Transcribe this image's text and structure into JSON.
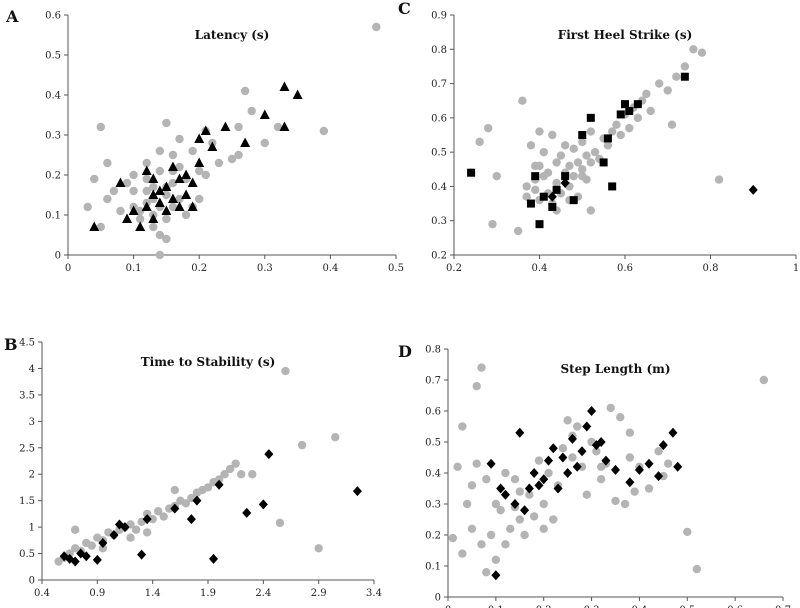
{
  "chart_data": [
    {
      "panel": "A",
      "type": "scatter",
      "title": "Latency (s)",
      "xlim": [
        0,
        0.5
      ],
      "ylim": [
        0,
        0.6
      ],
      "xticks": [
        "0",
        "0.1",
        "0.2",
        "0.3",
        "0.4",
        "0.5"
      ],
      "yticks": [
        "0",
        "0.1",
        "0.2",
        "0.3",
        "0.4",
        "0.5",
        "0.6"
      ],
      "grid": false,
      "series": [
        {
          "marker": "circle",
          "color": "#b4b4b4",
          "x": [
            0.03,
            0.04,
            0.05,
            0.05,
            0.06,
            0.06,
            0.07,
            0.08,
            0.09,
            0.1,
            0.1,
            0.11,
            0.11,
            0.12,
            0.12,
            0.12,
            0.13,
            0.13,
            0.13,
            0.14,
            0.14,
            0.14,
            0.14,
            0.15,
            0.15,
            0.15,
            0.15,
            0.16,
            0.16,
            0.16,
            0.16,
            0.17,
            0.17,
            0.18,
            0.18,
            0.19,
            0.19,
            0.2,
            0.2,
            0.21,
            0.21,
            0.22,
            0.23,
            0.25,
            0.26,
            0.26,
            0.27,
            0.28,
            0.3,
            0.32,
            0.39,
            0.47,
            0.14,
            0.15,
            0.1,
            0.12,
            0.17,
            0.13
          ],
          "y": [
            0.12,
            0.19,
            0.32,
            0.07,
            0.23,
            0.14,
            0.16,
            0.11,
            0.18,
            0.12,
            0.2,
            0.11,
            0.09,
            0.16,
            0.19,
            0.23,
            0.07,
            0.17,
            0.1,
            0.05,
            0.12,
            0.21,
            0.26,
            0.33,
            0.15,
            0.09,
            0.04,
            0.12,
            0.18,
            0.21,
            0.25,
            0.29,
            0.14,
            0.1,
            0.19,
            0.12,
            0.26,
            0.14,
            0.21,
            0.2,
            0.31,
            0.28,
            0.23,
            0.24,
            0.25,
            0.32,
            0.41,
            0.36,
            0.28,
            0.32,
            0.31,
            0.57,
            0.0,
            0.17,
            0.16,
            0.13,
            0.22,
            0.14
          ]
        },
        {
          "marker": "triangle",
          "color": "#000000",
          "x": [
            0.04,
            0.08,
            0.09,
            0.1,
            0.11,
            0.12,
            0.12,
            0.13,
            0.13,
            0.13,
            0.14,
            0.14,
            0.15,
            0.15,
            0.16,
            0.16,
            0.17,
            0.17,
            0.18,
            0.18,
            0.19,
            0.19,
            0.2,
            0.2,
            0.21,
            0.22,
            0.24,
            0.27,
            0.3,
            0.33,
            0.33,
            0.35
          ],
          "y": [
            0.07,
            0.18,
            0.09,
            0.11,
            0.07,
            0.12,
            0.21,
            0.15,
            0.09,
            0.19,
            0.16,
            0.13,
            0.11,
            0.17,
            0.14,
            0.22,
            0.19,
            0.12,
            0.15,
            0.2,
            0.18,
            0.12,
            0.23,
            0.29,
            0.31,
            0.27,
            0.32,
            0.28,
            0.35,
            0.42,
            0.32,
            0.4
          ]
        }
      ]
    },
    {
      "panel": "C",
      "type": "scatter",
      "title": "First Heel Strike (s)",
      "xlim": [
        0.2,
        1.0
      ],
      "ylim": [
        0.2,
        0.9
      ],
      "xticks": [
        "0.2",
        "0.4",
        "0.6",
        "0.8",
        "1"
      ],
      "yticks": [
        "0.2",
        "0.3",
        "0.4",
        "0.5",
        "0.6",
        "0.7",
        "0.8",
        "0.9"
      ],
      "grid": false,
      "series": [
        {
          "marker": "circle",
          "color": "#b4b4b4",
          "x": [
            0.24,
            0.26,
            0.28,
            0.29,
            0.3,
            0.35,
            0.36,
            0.37,
            0.38,
            0.39,
            0.39,
            0.4,
            0.4,
            0.41,
            0.41,
            0.42,
            0.42,
            0.43,
            0.43,
            0.44,
            0.44,
            0.45,
            0.45,
            0.46,
            0.46,
            0.47,
            0.47,
            0.48,
            0.48,
            0.49,
            0.49,
            0.5,
            0.5,
            0.51,
            0.51,
            0.52,
            0.52,
            0.53,
            0.54,
            0.55,
            0.56,
            0.57,
            0.58,
            0.59,
            0.6,
            0.61,
            0.62,
            0.63,
            0.64,
            0.65,
            0.66,
            0.68,
            0.7,
            0.71,
            0.72,
            0.74,
            0.76,
            0.78,
            0.82,
            0.37,
            0.39,
            0.4,
            0.44,
            0.47,
            0.5,
            0.52
          ],
          "y": [
            0.44,
            0.53,
            0.57,
            0.29,
            0.43,
            0.27,
            0.65,
            0.37,
            0.52,
            0.39,
            0.46,
            0.36,
            0.56,
            0.43,
            0.5,
            0.38,
            0.44,
            0.55,
            0.35,
            0.47,
            0.41,
            0.49,
            0.38,
            0.44,
            0.52,
            0.4,
            0.46,
            0.43,
            0.51,
            0.37,
            0.47,
            0.45,
            0.53,
            0.42,
            0.49,
            0.47,
            0.56,
            0.5,
            0.48,
            0.54,
            0.52,
            0.56,
            0.58,
            0.55,
            0.61,
            0.57,
            0.63,
            0.6,
            0.65,
            0.67,
            0.62,
            0.7,
            0.68,
            0.58,
            0.72,
            0.75,
            0.8,
            0.79,
            0.42,
            0.4,
            0.42,
            0.46,
            0.33,
            0.36,
            0.43,
            0.33
          ],
          "_": null
        },
        {
          "marker": "square",
          "color": "#000000",
          "x": [
            0.24,
            0.38,
            0.39,
            0.4,
            0.41,
            0.43,
            0.44,
            0.46,
            0.48,
            0.5,
            0.52,
            0.55,
            0.56,
            0.57,
            0.59,
            0.6,
            0.61,
            0.63,
            0.74
          ],
          "y": [
            0.44,
            0.35,
            0.43,
            0.29,
            0.37,
            0.34,
            0.39,
            0.43,
            0.36,
            0.55,
            0.6,
            0.47,
            0.54,
            0.4,
            0.61,
            0.64,
            0.62,
            0.64,
            0.72
          ]
        },
        {
          "marker": "diamond",
          "color": "#000000",
          "x": [
            0.9,
            0.43,
            0.46
          ],
          "y": [
            0.39,
            0.37,
            0.41
          ]
        }
      ]
    },
    {
      "panel": "B",
      "type": "scatter",
      "title": "Time to Stability (s)",
      "xlim": [
        0.4,
        3.4
      ],
      "ylim": [
        0,
        4.5
      ],
      "xticks": [
        "0.4",
        "0.9",
        "1.4",
        "1.9",
        "2.4",
        "2.9",
        "3.4"
      ],
      "yticks": [
        "0",
        "0.5",
        "1",
        "1.5",
        "2",
        "2.5",
        "3",
        "3.5",
        "4",
        "4.5"
      ],
      "grid": false,
      "series": [
        {
          "marker": "circle",
          "color": "#b4b4b4",
          "x": [
            0.55,
            0.6,
            0.65,
            0.7,
            0.75,
            0.8,
            0.85,
            0.9,
            0.95,
            1.0,
            1.05,
            1.1,
            1.15,
            1.2,
            1.25,
            1.3,
            1.35,
            1.4,
            1.45,
            1.5,
            1.55,
            1.6,
            1.65,
            1.7,
            1.75,
            1.8,
            1.85,
            1.9,
            1.95,
            2.0,
            2.05,
            2.1,
            2.15,
            2.2,
            2.3,
            2.55,
            2.6,
            2.75,
            2.9,
            3.05,
            0.7,
            0.95,
            1.2,
            1.35,
            1.6
          ],
          "y": [
            0.35,
            0.42,
            0.5,
            0.6,
            0.55,
            0.7,
            0.65,
            0.8,
            0.75,
            0.9,
            0.85,
            0.95,
            1.0,
            1.05,
            0.95,
            1.1,
            1.25,
            1.15,
            1.3,
            1.2,
            1.35,
            1.4,
            1.5,
            1.45,
            1.55,
            1.65,
            1.7,
            1.75,
            1.85,
            1.9,
            2.0,
            2.1,
            2.2,
            2.0,
            2.0,
            1.08,
            3.95,
            2.55,
            0.6,
            2.7,
            0.95,
            0.6,
            0.8,
            0.9,
            1.7
          ],
          "_": null
        },
        {
          "marker": "diamond",
          "color": "#000000",
          "x": [
            0.6,
            0.65,
            0.7,
            0.75,
            0.8,
            0.9,
            0.95,
            1.05,
            1.1,
            1.15,
            1.3,
            1.35,
            1.6,
            1.75,
            1.8,
            1.95,
            2.0,
            2.25,
            2.4,
            2.45,
            3.25
          ],
          "y": [
            0.45,
            0.4,
            0.35,
            0.5,
            0.45,
            0.38,
            0.7,
            0.85,
            1.05,
            1.0,
            0.48,
            1.15,
            1.35,
            1.15,
            1.5,
            0.4,
            1.8,
            1.27,
            1.43,
            2.38,
            1.68
          ]
        }
      ]
    },
    {
      "panel": "D",
      "type": "scatter",
      "title": "Step Length (m)",
      "xlim": [
        0,
        0.7
      ],
      "ylim": [
        0,
        0.8
      ],
      "xticks": [
        "0",
        "0.1",
        "0.2",
        "0.3",
        "0.4",
        "0.5",
        "0.6",
        "0.7"
      ],
      "yticks": [
        "0",
        "0.1",
        "0.2",
        "0.3",
        "0.4",
        "0.5",
        "0.6",
        "0.7",
        "0.8"
      ],
      "grid": false,
      "series": [
        {
          "marker": "circle",
          "color": "#b4b4b4",
          "x": [
            0.01,
            0.02,
            0.03,
            0.04,
            0.05,
            0.05,
            0.06,
            0.07,
            0.07,
            0.08,
            0.09,
            0.1,
            0.1,
            0.11,
            0.12,
            0.13,
            0.14,
            0.14,
            0.15,
            0.16,
            0.17,
            0.18,
            0.19,
            0.2,
            0.21,
            0.22,
            0.23,
            0.24,
            0.25,
            0.26,
            0.27,
            0.28,
            0.29,
            0.3,
            0.31,
            0.32,
            0.33,
            0.34,
            0.35,
            0.36,
            0.37,
            0.38,
            0.39,
            0.4,
            0.42,
            0.44,
            0.46,
            0.5,
            0.52,
            0.66,
            0.06,
            0.08,
            0.12,
            0.2,
            0.26,
            0.32,
            0.38,
            0.45,
            0.03,
            0.15
          ],
          "y": [
            0.19,
            0.42,
            0.55,
            0.3,
            0.36,
            0.22,
            0.68,
            0.74,
            0.17,
            0.08,
            0.2,
            0.12,
            0.3,
            0.28,
            0.17,
            0.22,
            0.38,
            0.29,
            0.25,
            0.2,
            0.33,
            0.26,
            0.44,
            0.3,
            0.4,
            0.25,
            0.36,
            0.48,
            0.57,
            0.45,
            0.55,
            0.42,
            0.33,
            0.5,
            0.47,
            0.38,
            0.43,
            0.61,
            0.31,
            0.58,
            0.3,
            0.45,
            0.34,
            0.42,
            0.35,
            0.47,
            0.43,
            0.21,
            0.09,
            0.7,
            0.43,
            0.38,
            0.4,
            0.22,
            0.52,
            0.42,
            0.53,
            0.39,
            0.14,
            0.34
          ],
          "_": null
        },
        {
          "marker": "diamond",
          "color": "#000000",
          "x": [
            0.1,
            0.12,
            0.14,
            0.15,
            0.16,
            0.17,
            0.18,
            0.19,
            0.2,
            0.21,
            0.22,
            0.23,
            0.24,
            0.25,
            0.26,
            0.27,
            0.28,
            0.29,
            0.3,
            0.31,
            0.32,
            0.33,
            0.35,
            0.38,
            0.4,
            0.42,
            0.44,
            0.45,
            0.47,
            0.48,
            0.09,
            0.11
          ],
          "y": [
            0.07,
            0.33,
            0.3,
            0.53,
            0.28,
            0.35,
            0.4,
            0.36,
            0.38,
            0.44,
            0.48,
            0.35,
            0.45,
            0.4,
            0.51,
            0.42,
            0.47,
            0.55,
            0.6,
            0.49,
            0.5,
            0.44,
            0.41,
            0.37,
            0.41,
            0.43,
            0.39,
            0.49,
            0.53,
            0.42,
            0.43,
            0.35
          ]
        }
      ]
    }
  ]
}
